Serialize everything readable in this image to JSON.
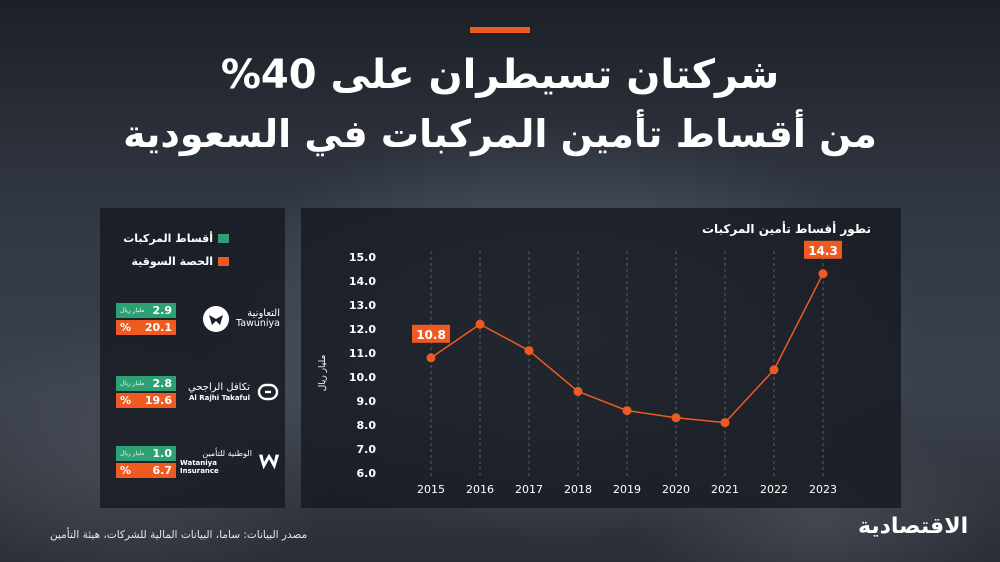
{
  "title_line1": "شركتان تسيطران على 40%",
  "title_line2": "من أقساط تأمين المركبات في السعودية",
  "legend": {
    "premiums": "أقساط المركبات",
    "share": "الحصة السوقية",
    "premiums_color": "#2ea174",
    "share_color": "#ee5b22"
  },
  "companies": [
    {
      "name_ar": "التعاونية",
      "name_en": "Tawuniya",
      "premium": "2.9",
      "unit": "مليار ريال",
      "share": "20.1",
      "pct_sign": "%",
      "icon": "tawuniya-logo-icon"
    },
    {
      "name_ar": "تكافل الراجحي",
      "name_en": "Al Rajhi Takaful",
      "premium": "2.8",
      "unit": "مليار ريال",
      "share": "19.6",
      "pct_sign": "%",
      "icon": "alrajhi-logo-icon"
    },
    {
      "name_ar": "الوطنية للتأمين",
      "name_en": "Wataniya Insurance",
      "premium": "1.0",
      "unit": "مليار ريال",
      "share": "6.7",
      "pct_sign": "%",
      "icon": "wataniya-logo-icon"
    }
  ],
  "chart_data": {
    "type": "line",
    "title": "تطور أقساط تأمين المركبات",
    "ylabel": "مليار ريال",
    "x": [
      "2015",
      "2016",
      "2017",
      "2018",
      "2019",
      "2020",
      "2021",
      "2022",
      "2023"
    ],
    "values": [
      10.8,
      12.2,
      11.1,
      9.4,
      8.6,
      8.3,
      8.1,
      10.3,
      14.3
    ],
    "ylim": [
      6.0,
      15.0
    ],
    "yticks": [
      "6.0",
      "7.0",
      "8.0",
      "9.0",
      "10.0",
      "11.0",
      "12.0",
      "13.0",
      "14.0",
      "15.0"
    ],
    "data_labels": [
      {
        "index": 0,
        "text": "10.8"
      },
      {
        "index": 8,
        "text": "14.3"
      }
    ],
    "line_color": "#ee5b22",
    "grid": "vertical dashed"
  },
  "source": "مصدر البيانات: ساما، البيانات المالية للشركات، هيئة التأمين",
  "brand": "الاقتصادية"
}
